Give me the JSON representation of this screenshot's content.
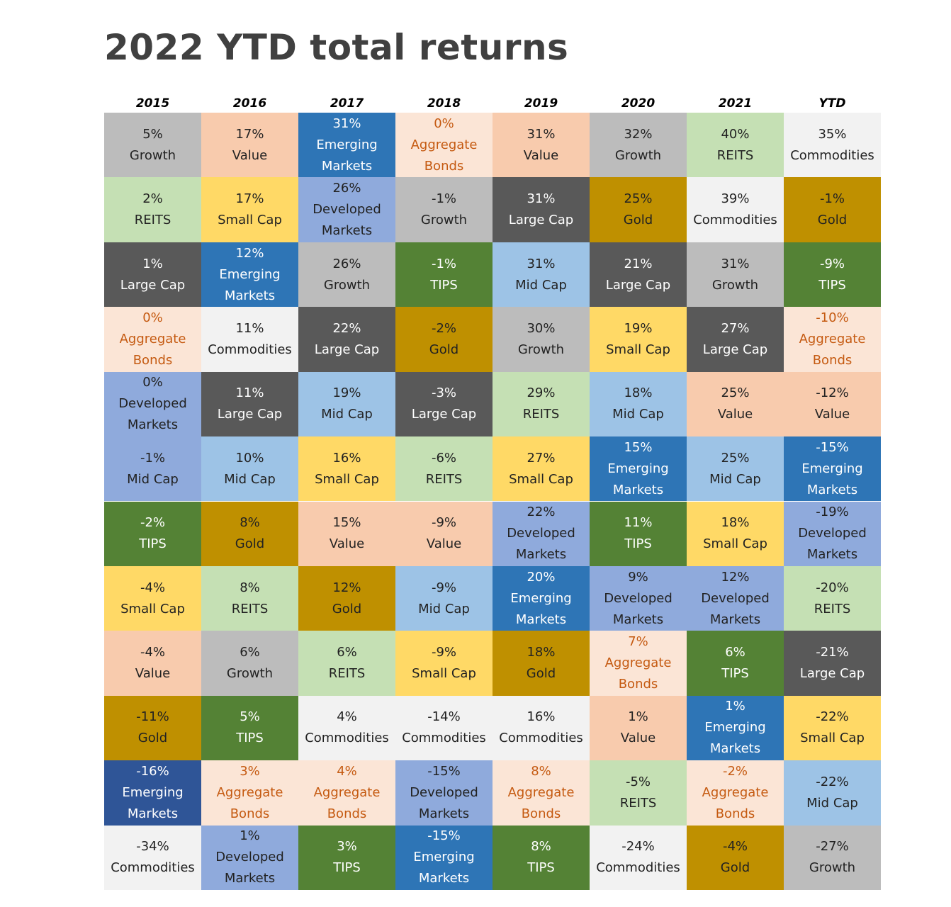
{
  "title": "2022 YTD total returns",
  "colors": {
    "Growth": {
      "bg": "#BCBCBC",
      "fg": "#222222"
    },
    "Value": {
      "bg": "#F8CBAD",
      "fg": "#222222"
    },
    "Emerging Markets": {
      "bg": "#2E75B6",
      "fg": "#FFFFFF"
    },
    "Emerging Markets Dark": {
      "bg": "#2F5597",
      "fg": "#FFFFFF"
    },
    "Aggregate Bonds": {
      "bg": "#FBE5D6",
      "fg": "#C55A11"
    },
    "REITS": {
      "bg": "#C5E0B4",
      "fg": "#222222"
    },
    "Commodities": {
      "bg": "#F2F2F2",
      "fg": "#222222"
    },
    "Small Cap": {
      "bg": "#FFD966",
      "fg": "#222222"
    },
    "Developed Markets": {
      "bg": "#8FAADC",
      "fg": "#222222"
    },
    "Large Cap": {
      "bg": "#595959",
      "fg": "#FFFFFF"
    },
    "Gold": {
      "bg": "#BF9000",
      "fg": "#222222"
    },
    "TIPS": {
      "bg": "#548235",
      "fg": "#FFFFFF"
    },
    "Mid Cap": {
      "bg": "#9DC3E6",
      "fg": "#222222"
    }
  },
  "chart_data": {
    "type": "table",
    "title": "2022 YTD total returns",
    "columns": [
      "2015",
      "2016",
      "2017",
      "2018",
      "2019",
      "2020",
      "2021",
      "YTD"
    ],
    "cells": [
      [
        {
          "pct": "5%",
          "lines": [
            "Growth"
          ],
          "cls": "Growth"
        },
        {
          "pct": "2%",
          "lines": [
            "REITS"
          ],
          "cls": "REITS"
        },
        {
          "pct": "1%",
          "lines": [
            "Large Cap"
          ],
          "cls": "Large Cap"
        },
        {
          "pct": "0%",
          "lines": [
            "Aggregate",
            "Bonds"
          ],
          "cls": "Aggregate Bonds"
        },
        {
          "pct": "0%",
          "lines": [
            "Developed",
            "Markets"
          ],
          "cls": "Developed Markets"
        },
        {
          "pct": "-1%",
          "lines": [
            "Mid Cap"
          ],
          "cls": "Developed Markets"
        },
        {
          "pct": "-2%",
          "lines": [
            "TIPS"
          ],
          "cls": "TIPS"
        },
        {
          "pct": "-4%",
          "lines": [
            "Small Cap"
          ],
          "cls": "Small Cap"
        },
        {
          "pct": "-4%",
          "lines": [
            "Value"
          ],
          "cls": "Value"
        },
        {
          "pct": "-11%",
          "lines": [
            "Gold"
          ],
          "cls": "Gold"
        },
        {
          "pct": "-16%",
          "lines": [
            "Emerging",
            "Markets"
          ],
          "cls": "Emerging Markets Dark"
        },
        {
          "pct": "-34%",
          "lines": [
            "Commodities"
          ],
          "cls": "Commodities"
        }
      ],
      [
        {
          "pct": "17%",
          "lines": [
            "Value"
          ],
          "cls": "Value"
        },
        {
          "pct": "17%",
          "lines": [
            "Small Cap"
          ],
          "cls": "Small Cap"
        },
        {
          "pct": "12%",
          "lines": [
            "Emerging",
            "Markets"
          ],
          "cls": "Emerging Markets"
        },
        {
          "pct": "11%",
          "lines": [
            "Commodities"
          ],
          "cls": "Commodities"
        },
        {
          "pct": "11%",
          "lines": [
            "Large Cap"
          ],
          "cls": "Large Cap"
        },
        {
          "pct": "10%",
          "lines": [
            "Mid Cap"
          ],
          "cls": "Mid Cap"
        },
        {
          "pct": "8%",
          "lines": [
            "Gold"
          ],
          "cls": "Gold"
        },
        {
          "pct": "8%",
          "lines": [
            "REITS"
          ],
          "cls": "REITS"
        },
        {
          "pct": "6%",
          "lines": [
            "Growth"
          ],
          "cls": "Growth"
        },
        {
          "pct": "5%",
          "lines": [
            "TIPS"
          ],
          "cls": "TIPS"
        },
        {
          "pct": "3%",
          "lines": [
            "Aggregate",
            "Bonds"
          ],
          "cls": "Aggregate Bonds"
        },
        {
          "pct": "1%",
          "lines": [
            "Developed",
            "Markets"
          ],
          "cls": "Developed Markets"
        }
      ],
      [
        {
          "pct": "31%",
          "lines": [
            "Emerging",
            "Markets"
          ],
          "cls": "Emerging Markets"
        },
        {
          "pct": "26%",
          "lines": [
            "Developed",
            "Markets"
          ],
          "cls": "Developed Markets"
        },
        {
          "pct": "26%",
          "lines": [
            "Growth"
          ],
          "cls": "Growth"
        },
        {
          "pct": "22%",
          "lines": [
            "Large Cap"
          ],
          "cls": "Large Cap"
        },
        {
          "pct": "19%",
          "lines": [
            "Mid Cap"
          ],
          "cls": "Mid Cap"
        },
        {
          "pct": "16%",
          "lines": [
            "Small Cap"
          ],
          "cls": "Small Cap"
        },
        {
          "pct": "15%",
          "lines": [
            "Value"
          ],
          "cls": "Value"
        },
        {
          "pct": "12%",
          "lines": [
            "Gold"
          ],
          "cls": "Gold"
        },
        {
          "pct": "6%",
          "lines": [
            "REITS"
          ],
          "cls": "REITS"
        },
        {
          "pct": "4%",
          "lines": [
            "Commodities"
          ],
          "cls": "Commodities"
        },
        {
          "pct": "4%",
          "lines": [
            "Aggregate",
            "Bonds"
          ],
          "cls": "Aggregate Bonds"
        },
        {
          "pct": "3%",
          "lines": [
            "TIPS"
          ],
          "cls": "TIPS"
        }
      ],
      [
        {
          "pct": "0%",
          "lines": [
            "Aggregate",
            "Bonds"
          ],
          "cls": "Aggregate Bonds"
        },
        {
          "pct": "-1%",
          "lines": [
            "Growth"
          ],
          "cls": "Growth"
        },
        {
          "pct": "-1%",
          "lines": [
            "TIPS"
          ],
          "cls": "TIPS"
        },
        {
          "pct": "-2%",
          "lines": [
            "Gold"
          ],
          "cls": "Gold"
        },
        {
          "pct": "-3%",
          "lines": [
            "Large Cap"
          ],
          "cls": "Large Cap"
        },
        {
          "pct": "-6%",
          "lines": [
            "REITS"
          ],
          "cls": "REITS"
        },
        {
          "pct": "-9%",
          "lines": [
            "Value"
          ],
          "cls": "Value"
        },
        {
          "pct": "-9%",
          "lines": [
            "Mid Cap"
          ],
          "cls": "Mid Cap"
        },
        {
          "pct": "-9%",
          "lines": [
            "Small Cap"
          ],
          "cls": "Small Cap"
        },
        {
          "pct": "-14%",
          "lines": [
            "Commodities"
          ],
          "cls": "Commodities"
        },
        {
          "pct": "-15%",
          "lines": [
            "Developed",
            "Markets"
          ],
          "cls": "Developed Markets"
        },
        {
          "pct": "-15%",
          "lines": [
            "Emerging",
            "Markets"
          ],
          "cls": "Emerging Markets"
        }
      ],
      [
        {
          "pct": "31%",
          "lines": [
            "Value"
          ],
          "cls": "Value"
        },
        {
          "pct": "31%",
          "lines": [
            "Large Cap"
          ],
          "cls": "Large Cap"
        },
        {
          "pct": "31%",
          "lines": [
            "Mid Cap"
          ],
          "cls": "Mid Cap"
        },
        {
          "pct": "30%",
          "lines": [
            "Growth"
          ],
          "cls": "Growth"
        },
        {
          "pct": "29%",
          "lines": [
            "REITS"
          ],
          "cls": "REITS"
        },
        {
          "pct": "27%",
          "lines": [
            "Small Cap"
          ],
          "cls": "Small Cap"
        },
        {
          "pct": "22%",
          "lines": [
            "Developed",
            "Markets"
          ],
          "cls": "Developed Markets"
        },
        {
          "pct": "20%",
          "lines": [
            "Emerging",
            "Markets"
          ],
          "cls": "Emerging Markets"
        },
        {
          "pct": "18%",
          "lines": [
            "Gold"
          ],
          "cls": "Gold"
        },
        {
          "pct": "16%",
          "lines": [
            "Commodities"
          ],
          "cls": "Commodities"
        },
        {
          "pct": "8%",
          "lines": [
            "Aggregate",
            "Bonds"
          ],
          "cls": "Aggregate Bonds"
        },
        {
          "pct": "8%",
          "lines": [
            "TIPS"
          ],
          "cls": "TIPS"
        }
      ],
      [
        {
          "pct": "32%",
          "lines": [
            "Growth"
          ],
          "cls": "Growth"
        },
        {
          "pct": "25%",
          "lines": [
            "Gold"
          ],
          "cls": "Gold"
        },
        {
          "pct": "21%",
          "lines": [
            "Large Cap"
          ],
          "cls": "Large Cap"
        },
        {
          "pct": "19%",
          "lines": [
            "Small Cap"
          ],
          "cls": "Small Cap"
        },
        {
          "pct": "18%",
          "lines": [
            "Mid Cap"
          ],
          "cls": "Mid Cap"
        },
        {
          "pct": "15%",
          "lines": [
            "Emerging",
            "Markets"
          ],
          "cls": "Emerging Markets"
        },
        {
          "pct": "11%",
          "lines": [
            "TIPS"
          ],
          "cls": "TIPS"
        },
        {
          "pct": "9%",
          "lines": [
            "Developed",
            "Markets"
          ],
          "cls": "Developed Markets"
        },
        {
          "pct": "7%",
          "lines": [
            "Aggregate",
            "Bonds"
          ],
          "cls": "Aggregate Bonds"
        },
        {
          "pct": "1%",
          "lines": [
            "Value"
          ],
          "cls": "Value"
        },
        {
          "pct": "-5%",
          "lines": [
            "REITS"
          ],
          "cls": "REITS"
        },
        {
          "pct": "-24%",
          "lines": [
            "Commodities"
          ],
          "cls": "Commodities"
        }
      ],
      [
        {
          "pct": "40%",
          "lines": [
            "REITS"
          ],
          "cls": "REITS"
        },
        {
          "pct": "39%",
          "lines": [
            "Commodities"
          ],
          "cls": "Commodities"
        },
        {
          "pct": "31%",
          "lines": [
            "Growth"
          ],
          "cls": "Growth"
        },
        {
          "pct": "27%",
          "lines": [
            "Large Cap"
          ],
          "cls": "Large Cap"
        },
        {
          "pct": "25%",
          "lines": [
            "Value"
          ],
          "cls": "Value"
        },
        {
          "pct": "25%",
          "lines": [
            "Mid Cap"
          ],
          "cls": "Mid Cap"
        },
        {
          "pct": "18%",
          "lines": [
            "Small Cap"
          ],
          "cls": "Small Cap"
        },
        {
          "pct": "12%",
          "lines": [
            "Developed",
            "Markets"
          ],
          "cls": "Developed Markets"
        },
        {
          "pct": "6%",
          "lines": [
            "TIPS"
          ],
          "cls": "TIPS"
        },
        {
          "pct": "1%",
          "lines": [
            "Emerging",
            "Markets"
          ],
          "cls": "Emerging Markets"
        },
        {
          "pct": "-2%",
          "lines": [
            "Aggregate",
            "Bonds"
          ],
          "cls": "Aggregate Bonds"
        },
        {
          "pct": "-4%",
          "lines": [
            "Gold"
          ],
          "cls": "Gold"
        }
      ],
      [
        {
          "pct": "35%",
          "lines": [
            "Commodities"
          ],
          "cls": "Commodities"
        },
        {
          "pct": "-1%",
          "lines": [
            "Gold"
          ],
          "cls": "Gold"
        },
        {
          "pct": "-9%",
          "lines": [
            "TIPS"
          ],
          "cls": "TIPS"
        },
        {
          "pct": "-10%",
          "lines": [
            "Aggregate",
            "Bonds"
          ],
          "cls": "Aggregate Bonds"
        },
        {
          "pct": "-12%",
          "lines": [
            "Value"
          ],
          "cls": "Value"
        },
        {
          "pct": "-15%",
          "lines": [
            "Emerging",
            "Markets"
          ],
          "cls": "Emerging Markets"
        },
        {
          "pct": "-19%",
          "lines": [
            "Developed",
            "Markets"
          ],
          "cls": "Developed Markets"
        },
        {
          "pct": "-20%",
          "lines": [
            "REITS"
          ],
          "cls": "REITS"
        },
        {
          "pct": "-21%",
          "lines": [
            "Large Cap"
          ],
          "cls": "Large Cap"
        },
        {
          "pct": "-22%",
          "lines": [
            "Small Cap"
          ],
          "cls": "Small Cap"
        },
        {
          "pct": "-22%",
          "lines": [
            "Mid Cap"
          ],
          "cls": "Mid Cap"
        },
        {
          "pct": "-27%",
          "lines": [
            "Growth"
          ],
          "cls": "Growth"
        }
      ]
    ]
  }
}
